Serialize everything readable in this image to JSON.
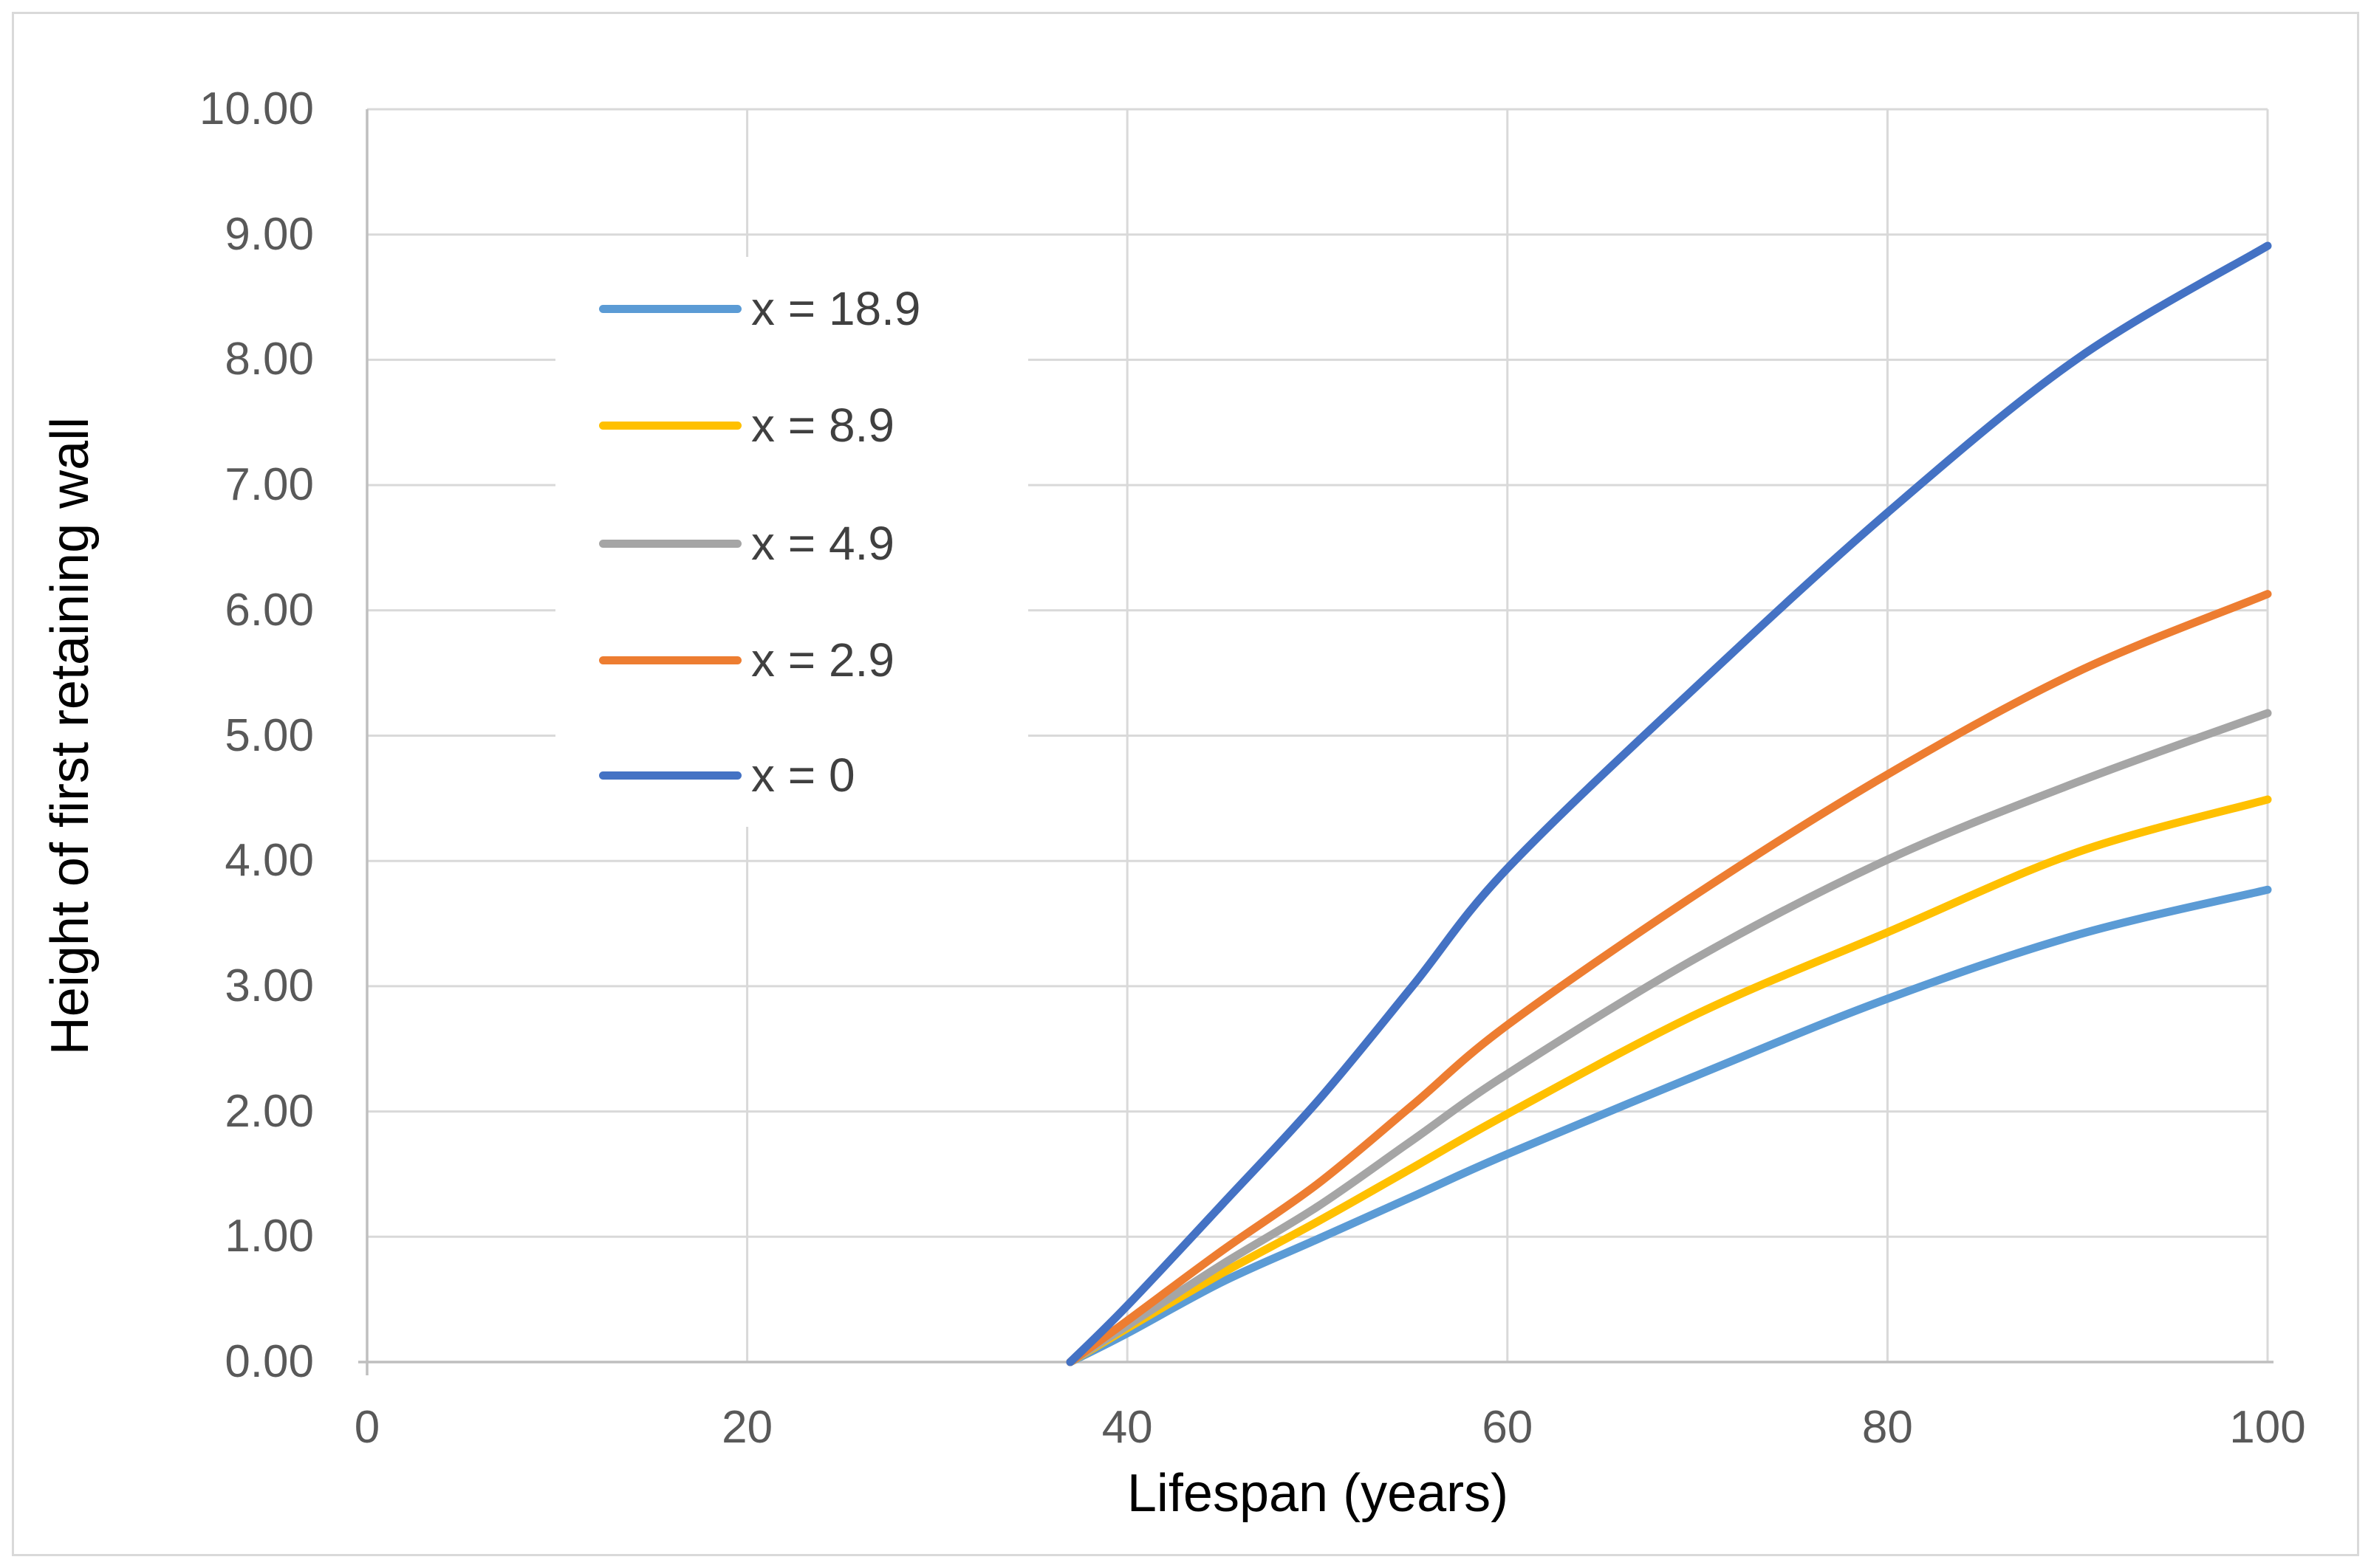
{
  "figure": {
    "background_color": "#FFFFFF",
    "border_color": "#D9D9D9",
    "gridline_color": "#D9D9D9",
    "axis_line_color": "#BFBFBF",
    "tick_label_color": "#595959",
    "axis_title_color": "#000000",
    "legend_text_color": "#404040"
  },
  "chart_data": {
    "type": "line",
    "title": "",
    "xlabel": "Lifespan (years)",
    "ylabel": "Height of first retaining wall",
    "xlim": [
      0,
      100
    ],
    "ylim": [
      0,
      10
    ],
    "grid": true,
    "legend_position": "inside-upper-left",
    "x_ticks": [
      0,
      20,
      40,
      60,
      80,
      100
    ],
    "x_tick_labels": [
      "0",
      "20",
      "40",
      "60",
      "80",
      "100"
    ],
    "y_ticks": [
      0,
      1,
      2,
      3,
      4,
      5,
      6,
      7,
      8,
      9,
      10
    ],
    "y_tick_labels": [
      "0.00",
      "1.00",
      "2.00",
      "3.00",
      "4.00",
      "5.00",
      "6.00",
      "7.00",
      "8.00",
      "9.00",
      "10.00"
    ],
    "x": [
      37,
      40,
      45,
      50,
      55,
      60,
      70,
      80,
      90,
      100
    ],
    "series": [
      {
        "name": "x = 18.9",
        "color": "#5B9BD5",
        "values": [
          0,
          0.23,
          0.64,
          0.98,
          1.32,
          1.66,
          2.29,
          2.9,
          3.41,
          3.77
        ]
      },
      {
        "name": "x = 8.9",
        "color": "#FFC000",
        "values": [
          0,
          0.27,
          0.71,
          1.12,
          1.55,
          1.98,
          2.78,
          3.43,
          4.07,
          4.49
        ]
      },
      {
        "name": "x = 4.9",
        "color": "#A5A5A5",
        "values": [
          0,
          0.29,
          0.78,
          1.24,
          1.77,
          2.3,
          3.23,
          4.01,
          4.63,
          5.18
        ]
      },
      {
        "name": "x = 2.9",
        "color": "#ED7D31",
        "values": [
          0,
          0.33,
          0.89,
          1.42,
          2.05,
          2.69,
          3.74,
          4.69,
          5.51,
          6.13
        ]
      },
      {
        "name": "x = 0",
        "color": "#4472C4",
        "values": [
          0,
          0.45,
          1.26,
          2.08,
          3.0,
          3.94,
          5.4,
          6.78,
          8.01,
          8.91
        ]
      }
    ]
  }
}
